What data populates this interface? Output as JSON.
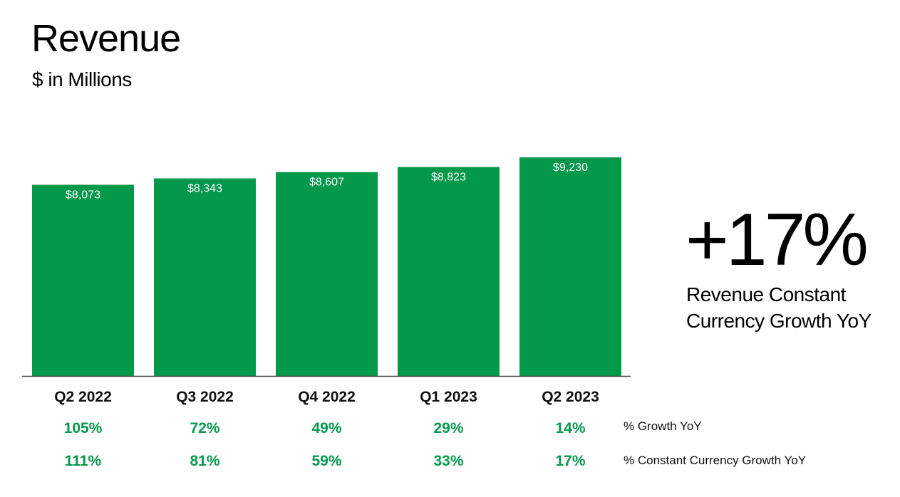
{
  "header": {
    "title": "Revenue",
    "subtitle": "$ in Millions"
  },
  "callout": {
    "value": "+17%",
    "caption_line1": "Revenue Constant",
    "caption_line2": "Currency Growth YoY"
  },
  "rows": {
    "growth_label": "% Growth YoY",
    "cc_growth_label": "% Constant Currency Growth YoY"
  },
  "colors": {
    "bar": "#04984A",
    "pct_text": "#04984A",
    "axis": "#444444"
  },
  "chart_data": {
    "type": "bar",
    "title": "Revenue",
    "subtitle": "$ in Millions",
    "categories": [
      "Q2 2022",
      "Q3 2022",
      "Q4 2022",
      "Q1 2023",
      "Q2 2023"
    ],
    "series": [
      {
        "values": [
          8073,
          8343,
          8607,
          8823,
          9230
        ],
        "data_labels": [
          "$8,073",
          "$8,343",
          "$8,607",
          "$8,823",
          "$9,230"
        ]
      }
    ],
    "growth_yoy": [
      "105%",
      "72%",
      "49%",
      "29%",
      "14%"
    ],
    "constant_currency_growth_yoy": [
      "111%",
      "81%",
      "59%",
      "33%",
      "17%"
    ],
    "ylim": [
      0,
      9230
    ],
    "grid": false,
    "legend": "none"
  }
}
